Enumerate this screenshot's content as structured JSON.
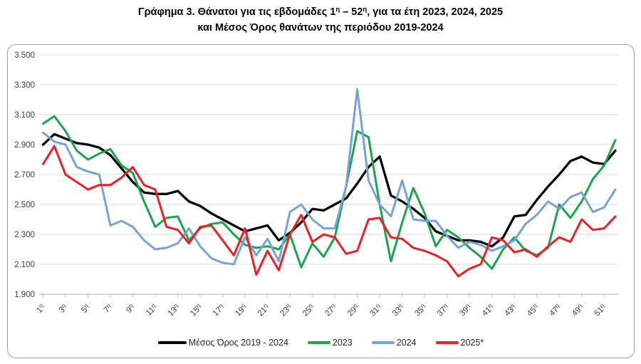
{
  "title": {
    "line1_pre": "Γράφημα 3. Θάνατοι για τις εβδομάδες 1",
    "line1_sup1": "η",
    "line1_mid": " – 52",
    "line1_sup2": "η",
    "line1_post": ", για τα έτη 2023, 2024, 2025",
    "line2": "και Μέσος Όρος θανάτων της περιόδου 2019-2024"
  },
  "chart_data": {
    "type": "line",
    "title": "Γράφημα 3. Θάνατοι για τις εβδομάδες 1η – 52η, για τα έτη 2023, 2024, 2025 και Μέσος Όρος θανάτων της περιόδου 2019-2024",
    "xlabel": "",
    "ylabel": "",
    "ylim": [
      1900,
      3500
    ],
    "ytick_step": 200,
    "y_tick_labels": [
      "1.900",
      "2.100",
      "2.300",
      "2.500",
      "2.700",
      "2.900",
      "3.100",
      "3.300",
      "3.500"
    ],
    "x": [
      1,
      2,
      3,
      4,
      5,
      6,
      7,
      8,
      9,
      10,
      11,
      12,
      13,
      14,
      15,
      16,
      17,
      18,
      19,
      20,
      21,
      22,
      23,
      24,
      25,
      26,
      27,
      28,
      29,
      30,
      31,
      32,
      33,
      34,
      35,
      36,
      37,
      38,
      39,
      40,
      41,
      42,
      43,
      44,
      45,
      46,
      47,
      48,
      49,
      50,
      51,
      52
    ],
    "x_tick_labels": [
      "1η",
      "3η",
      "5η",
      "7η",
      "9η",
      "11η",
      "13η",
      "15η",
      "17η",
      "19η",
      "21η",
      "23η",
      "25η",
      "27η",
      "29η",
      "31η",
      "33η",
      "35η",
      "37η",
      "39η",
      "41η",
      "43η",
      "45η",
      "47η",
      "49η",
      "51η"
    ],
    "grid": "horizontal-only",
    "legend_position": "bottom",
    "colors": {
      "average": "#000000",
      "y2023": "#18a54b",
      "y2024": "#74a3d6",
      "y2025": "#eb1f25",
      "gridline": "#d9d9d9",
      "axis": "#bfbfbf",
      "axis_text": "#3d3d3d"
    },
    "series": [
      {
        "name": "Μέσος Όρος 2019 - 2024",
        "slug": "mesos-oros-2019-2024",
        "color": "#000000",
        "swatch_width": 40,
        "values": [
          2900,
          2970,
          2940,
          2910,
          2900,
          2880,
          2830,
          2740,
          2650,
          2580,
          2570,
          2570,
          2590,
          2520,
          2490,
          2440,
          2400,
          2360,
          2320,
          2340,
          2360,
          2260,
          2310,
          2380,
          2470,
          2460,
          2500,
          2540,
          2640,
          2750,
          2820,
          2560,
          2520,
          2470,
          2410,
          2320,
          2290,
          2260,
          2260,
          2250,
          2220,
          2280,
          2420,
          2430,
          2530,
          2620,
          2700,
          2790,
          2820,
          2780,
          2770,
          2860
        ]
      },
      {
        "name": "2023",
        "slug": "2023",
        "color": "#18a54b",
        "swatch_width": 32,
        "values": [
          3040,
          3090,
          2990,
          2860,
          2800,
          2840,
          2870,
          2760,
          2710,
          2520,
          2350,
          2410,
          2420,
          2260,
          2340,
          2370,
          2380,
          2300,
          2230,
          2210,
          2220,
          2200,
          2300,
          2080,
          2240,
          2150,
          2280,
          2620,
          2990,
          2950,
          2500,
          2120,
          2380,
          2610,
          2440,
          2220,
          2330,
          2280,
          2210,
          2150,
          2070,
          2200,
          2280,
          2190,
          2160,
          2210,
          2500,
          2410,
          2520,
          2670,
          2760,
          2930
        ]
      },
      {
        "name": "2024",
        "slug": "2024",
        "color": "#74a3d6",
        "swatch_width": 32,
        "values": [
          2980,
          2920,
          2900,
          2750,
          2720,
          2700,
          2360,
          2390,
          2350,
          2260,
          2200,
          2210,
          2240,
          2340,
          2220,
          2140,
          2110,
          2100,
          2280,
          2160,
          2270,
          2120,
          2450,
          2500,
          2400,
          2340,
          2340,
          2620,
          3270,
          2660,
          2500,
          2420,
          2660,
          2400,
          2390,
          2390,
          2290,
          2210,
          2250,
          2230,
          2190,
          2220,
          2260,
          2370,
          2430,
          2520,
          2470,
          2550,
          2580,
          2450,
          2480,
          2600
        ]
      },
      {
        "name": "2025*",
        "slug": "2025",
        "color": "#eb1f25",
        "swatch_width": 32,
        "values": [
          2770,
          2890,
          2700,
          2650,
          2600,
          2630,
          2630,
          2680,
          2750,
          2630,
          2600,
          2350,
          2330,
          2240,
          2350,
          2360,
          2260,
          2160,
          2340,
          2030,
          2190,
          2060,
          2300,
          2430,
          2250,
          2300,
          2280,
          2170,
          2190,
          2400,
          2410,
          2280,
          2270,
          2210,
          2190,
          2160,
          2120,
          2020,
          2070,
          2100,
          2280,
          2260,
          2180,
          2200,
          2150,
          2220,
          2280,
          2250,
          2400,
          2330,
          2340,
          2420
        ]
      }
    ]
  }
}
